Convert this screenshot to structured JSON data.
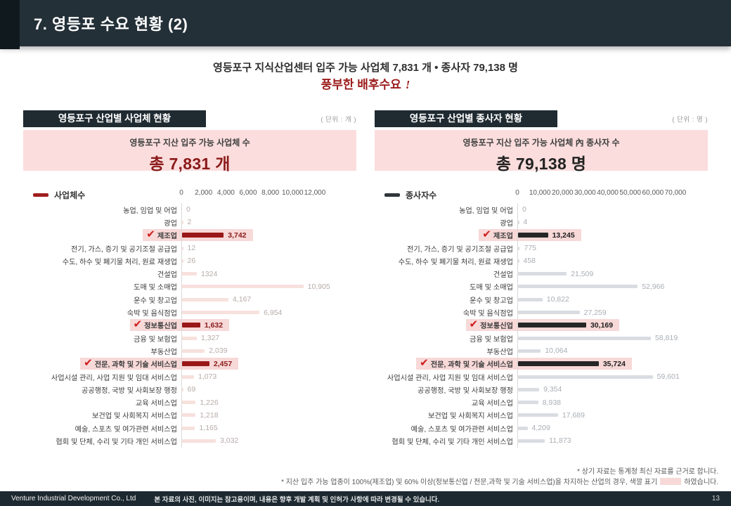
{
  "header": {
    "title": "7. 영등포 수요 현황 (2)"
  },
  "intro": {
    "line1": "영등포구 지식산업센터 입주 가능 사업체 7,831 개  •  종사자 79,138 명",
    "line2_text": "풍부한 배후수요",
    "line2_bang": "!"
  },
  "panels": [
    {
      "title": "영등포구 산업별 사업체 현황",
      "unit_label": "( 단위 : 개 )",
      "box_title": "영등포구 지산 입주 가능 사업체 수",
      "total": "총 7,831 개",
      "total_color": "#8b1a1a"
    },
    {
      "title": "영등포구 산업별 종사자 현황",
      "unit_label": "( 단위 : 명 )",
      "box_title": "영등포구 지산 입주 가능 사업체 內 종사자 수",
      "total": "총 79,138 명",
      "total_color": "#222222"
    }
  ],
  "chart_data": [
    {
      "type": "bar",
      "orientation": "horizontal",
      "title": "영등포구 산업별 사업체 현황",
      "unit": "개",
      "legend": "사업체수",
      "legend_position": "top-left",
      "grid": false,
      "xlim": [
        0,
        12000
      ],
      "x_ticks": [
        0,
        2000,
        4000,
        6000,
        8000,
        10000,
        12000
      ],
      "x_tick_labels": [
        "0",
        "2,000",
        "4,000",
        "6,000",
        "8,000",
        "10,000",
        "12,000"
      ],
      "categories": [
        "농업, 임업 및 어업",
        "광업",
        "제조업",
        "전기, 가스, 증기 및 공기조절 공급업",
        "수도, 하수 및 폐기물 처리, 원료 재생업",
        "건설업",
        "도매 및 소매업",
        "운수 및 창고업",
        "숙박 및 음식점업",
        "정보통신업",
        "금융 및 보험업",
        "부동산업",
        "전문, 과학 및 기술 서비스업",
        "사업시설 관리, 사업 지원 및 임대 서비스업",
        "공공행정, 국방 및 사회보장 행정",
        "교육 서비스업",
        "보건업 및 사회복지 서비스업",
        "예술, 스포츠 및 여가관련 서비스업",
        "협회 및 단체, 수리 및 기타 개인 서비스업"
      ],
      "values": [
        0,
        2,
        3742,
        12,
        26,
        1324,
        10905,
        4167,
        6954,
        1632,
        1327,
        2039,
        2457,
        1073,
        69,
        1226,
        1218,
        1165,
        3032
      ],
      "value_labels": [
        "0",
        "2",
        "3,742",
        "12",
        "26",
        "1324",
        "10,905",
        "4,167",
        "6,954",
        "1,632",
        "1,327",
        "2,039",
        "2,457",
        "1,073",
        "69",
        "1,226",
        "1,218",
        "1,165",
        "3,032"
      ],
      "highlighted_indices": [
        2,
        9,
        12
      ],
      "legend_color": "#a01d1d",
      "bar_color": "#f7e1dd",
      "bar_color_highlight": "#9a1717",
      "value_color": "#b7aba8",
      "value_color_highlight": "#8b1a1a",
      "highlight_bg": "#f7d9d8"
    },
    {
      "type": "bar",
      "orientation": "horizontal",
      "title": "영등포구 산업별 종사자 현황",
      "unit": "명",
      "legend": "종사자수",
      "legend_position": "top-left",
      "grid": false,
      "xlim": [
        0,
        70000
      ],
      "x_ticks": [
        0,
        10000,
        20000,
        30000,
        40000,
        50000,
        60000,
        70000
      ],
      "x_tick_labels": [
        "0",
        "10,000",
        "20,000",
        "30,000",
        "40,000",
        "50,000",
        "60,000",
        "70,000"
      ],
      "categories": [
        "농업, 임업 및 어업",
        "광업",
        "제조업",
        "전기, 가스, 증기 및 공기조절 공급업",
        "수도, 하수 및 폐기물 처리, 원료 재생업",
        "건설업",
        "도매 및 소매업",
        "운수 및 창고업",
        "숙박 및 음식점업",
        "정보통신업",
        "금융 및 보험업",
        "부동산업",
        "전문, 과학 및 기술 서비스업",
        "사업시설 관리, 사업 지원 및 임대 서비스업",
        "공공행정, 국방 및 사회보장 행정",
        "교육 서비스업",
        "보건업 및 사회복지 서비스업",
        "예술, 스포츠 및 여가관련 서비스업",
        "협회 및 단체, 수리 및 기타 개인 서비스업"
      ],
      "values": [
        0,
        4,
        13245,
        775,
        458,
        21509,
        52966,
        10822,
        27259,
        30169,
        58819,
        10064,
        35724,
        59601,
        9354,
        8938,
        17689,
        4209,
        11873
      ],
      "value_labels": [
        "0",
        "4",
        "13,245",
        "775",
        "458",
        "21,509",
        "52,966",
        "10,822",
        "27,259",
        "30,169",
        "58,819",
        "10,064",
        "35,724",
        "59,601",
        "9,354",
        "8,938",
        "17,689",
        "4,209",
        "11,873"
      ],
      "highlighted_indices": [
        2,
        9,
        12
      ],
      "legend_color": "#2e363c",
      "bar_color": "#d9dde2",
      "bar_color_highlight": "#262626",
      "value_color": "#a9aeb4",
      "value_color_highlight": "#1c1c1c",
      "highlight_bg": "#f7d9d8"
    }
  ],
  "notes": {
    "line1": "* 상기 자료는 통계청 최신 자료를 근거로 합니다.",
    "line2_before": "* 지산 입주 가능 업종이 100%(제조업) 및 60% 이상(정보통신업 / 전문,과학 및 기술 서비스업)을 차지하는 산업의 경우, 색깔 표기",
    "line2_after": "하였습니다."
  },
  "footer": {
    "company": "Venture Industrial Development Co., Ltd",
    "disclaimer": "본 자료의 사진, 이미지는 참고용이며, 내용은 향후 개발 계획 및 인허가 사항에 따라 변경될 수 있습니다.",
    "page": "13"
  }
}
